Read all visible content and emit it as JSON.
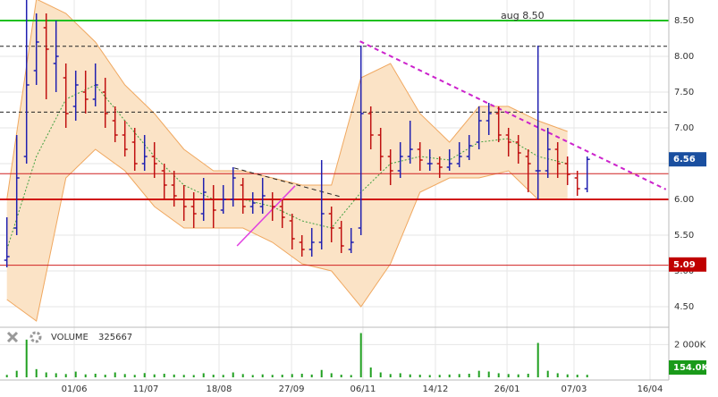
{
  "chart_data": [
    {
      "type": "ohlc",
      "xlim": [
        -0.7,
        67.3
      ],
      "ylim": [
        4.225,
        8.7875
      ],
      "xticks": [
        {
          "value": 6.85,
          "label": "01/06"
        },
        {
          "value": 14.12,
          "label": "11/07"
        },
        {
          "value": 21.57,
          "label": "18/08"
        },
        {
          "value": 28.94,
          "label": "27/09"
        },
        {
          "value": 36.2,
          "label": "06/11"
        },
        {
          "value": 43.57,
          "label": "14/12"
        },
        {
          "value": 50.85,
          "label": "26/01"
        },
        {
          "value": 57.66,
          "label": "07/03"
        },
        {
          "value": 65.39,
          "label": "16/04"
        }
      ],
      "yticks": [
        {
          "value": 4.5,
          "label": "4.50"
        },
        {
          "value": 5.0,
          "label": "5.00"
        },
        {
          "value": 5.5,
          "label": "5.50"
        },
        {
          "value": 6.0,
          "label": "6.00"
        },
        {
          "value": 6.5,
          "label": "6.50"
        },
        {
          "value": 7.0,
          "label": "7.00"
        },
        {
          "value": 7.5,
          "label": "7.50"
        },
        {
          "value": 8.0,
          "label": "8.00"
        },
        {
          "value": 8.5,
          "label": "8.50"
        }
      ],
      "grid": true,
      "up_color": "#2020b0",
      "down_color": "#c01010",
      "open": [
        5.15,
        5.6,
        6.6,
        7.8,
        8.4,
        7.9,
        7.7,
        7.3,
        7.5,
        7.4,
        7.5,
        7.1,
        6.9,
        6.8,
        6.5,
        6.6,
        6.4,
        6.2,
        6.0,
        5.9,
        5.8,
        6.0,
        5.85,
        6.0,
        6.2,
        5.9,
        5.9,
        6.0,
        5.9,
        5.7,
        5.4,
        5.3,
        5.4,
        5.8,
        5.6,
        5.3,
        5.6,
        7.2,
        6.9,
        6.6,
        6.4,
        6.6,
        6.7,
        6.5,
        6.5,
        6.45,
        6.5,
        6.6,
        6.8,
        7.1,
        7.2,
        6.9,
        6.8,
        6.6,
        6.4,
        6.4,
        6.7,
        6.5,
        6.3,
        6.15
      ],
      "high": [
        5.75,
        6.9,
        8.8,
        8.6,
        8.6,
        8.5,
        7.9,
        7.8,
        7.8,
        7.9,
        7.7,
        7.3,
        7.1,
        7.0,
        6.9,
        6.8,
        6.5,
        6.4,
        6.2,
        6.1,
        6.3,
        6.2,
        6.2,
        6.45,
        6.3,
        6.1,
        6.3,
        6.1,
        6.0,
        5.8,
        5.5,
        5.6,
        6.55,
        5.9,
        5.7,
        5.6,
        8.15,
        7.3,
        7.0,
        6.7,
        6.8,
        7.1,
        6.8,
        6.7,
        6.6,
        6.7,
        6.8,
        6.9,
        7.3,
        7.35,
        7.3,
        7.0,
        6.9,
        6.7,
        8.15,
        7.0,
        6.8,
        6.6,
        6.4,
        6.6
      ],
      "low": [
        5.05,
        5.5,
        6.5,
        7.6,
        7.4,
        7.5,
        7.0,
        7.1,
        7.2,
        7.3,
        7.0,
        6.8,
        6.6,
        6.4,
        6.4,
        6.3,
        6.0,
        5.9,
        5.7,
        5.6,
        5.7,
        5.6,
        5.8,
        5.9,
        5.8,
        5.8,
        5.8,
        5.7,
        5.6,
        5.3,
        5.2,
        5.2,
        5.3,
        5.4,
        5.25,
        5.25,
        5.5,
        6.7,
        6.4,
        6.2,
        6.3,
        6.5,
        6.4,
        6.4,
        6.3,
        6.4,
        6.45,
        6.55,
        6.7,
        6.9,
        6.8,
        6.6,
        6.5,
        6.1,
        6.0,
        6.3,
        6.3,
        6.2,
        6.05,
        6.1
      ],
      "close": [
        5.2,
        6.3,
        7.6,
        8.2,
        8.1,
        8.0,
        7.2,
        7.6,
        7.4,
        7.6,
        7.2,
        6.9,
        6.7,
        6.5,
        6.6,
        6.5,
        6.2,
        6.05,
        5.9,
        5.8,
        6.1,
        5.85,
        6.0,
        6.3,
        5.9,
        5.95,
        6.05,
        5.9,
        5.75,
        5.45,
        5.3,
        5.4,
        5.8,
        5.6,
        5.35,
        5.4,
        7.2,
        6.9,
        6.6,
        6.4,
        6.6,
        6.7,
        6.55,
        6.5,
        6.45,
        6.5,
        6.6,
        6.75,
        7.1,
        7.2,
        6.9,
        6.8,
        6.65,
        6.5,
        6.4,
        6.7,
        6.5,
        6.35,
        6.15,
        6.56
      ],
      "bands": {
        "x": [
          0,
          3,
          6,
          9,
          12,
          15,
          18,
          21,
          24,
          27,
          30,
          33,
          36,
          39,
          42,
          45,
          48,
          51,
          54,
          57
        ],
        "upper": [
          6.0,
          8.8,
          8.6,
          8.2,
          7.6,
          7.2,
          6.7,
          6.4,
          6.4,
          6.3,
          6.2,
          6.2,
          7.7,
          7.9,
          7.2,
          6.8,
          7.3,
          7.3,
          7.1,
          6.95
        ],
        "lower": [
          4.6,
          4.3,
          6.3,
          6.7,
          6.4,
          5.9,
          5.6,
          5.6,
          5.6,
          5.4,
          5.1,
          5.0,
          4.5,
          5.1,
          6.1,
          6.3,
          6.3,
          6.4,
          6.0,
          6.0
        ],
        "middle": [
          5.3,
          6.6,
          7.4,
          7.6,
          7.1,
          6.6,
          6.2,
          6.0,
          6.0,
          5.9,
          5.7,
          5.6,
          6.1,
          6.5,
          6.6,
          6.55,
          6.8,
          6.85,
          6.6,
          6.5
        ],
        "fill": "#fbe3c6",
        "edge": "#f0a860",
        "middle_color": "#40a040"
      },
      "levels": [
        {
          "value": 8.5,
          "color": "#20c020",
          "width": 2,
          "dashed": false,
          "label": "aug 8.50"
        },
        {
          "value": 8.14,
          "color": "#222222",
          "width": 1,
          "dashed": true
        },
        {
          "value": 7.22,
          "color": "#222222",
          "width": 1,
          "dashed": true
        },
        {
          "value": 6.36,
          "color": "#d02020",
          "width": 1,
          "dashed": false
        },
        {
          "value": 6.0,
          "color": "#d01010",
          "width": 2,
          "dashed": false
        },
        {
          "value": 5.08,
          "color": "#d02020",
          "width": 1,
          "dashed": false
        }
      ],
      "trendlines": [
        {
          "x": [
            35.9,
            67.0
          ],
          "y": [
            8.21,
            6.14
          ],
          "color": "#cc22cc",
          "width": 2,
          "dashed": true
        },
        {
          "x": [
            23.1,
            33.85
          ],
          "y": [
            6.44,
            6.04
          ],
          "color": "#222222",
          "width": 1,
          "dashed": true
        },
        {
          "x": [
            23.4,
            29.3
          ],
          "y": [
            5.35,
            6.19
          ],
          "color": "#e040e0",
          "width": 1.5,
          "dashed": false
        }
      ],
      "last_price": {
        "value": 6.56,
        "label": "6.56",
        "color": "#1a4fa0"
      },
      "marker": {
        "value": 5.09,
        "label": "5.09",
        "color": "#c00000"
      }
    },
    {
      "type": "volume",
      "title": "VOLUME",
      "subtitle": "325667",
      "ylim": [
        0,
        3000000
      ],
      "yticks": [
        {
          "value": 2000000,
          "label": "2 000K"
        }
      ],
      "color": "#20a020",
      "values": [
        150000,
        400000,
        2300000,
        500000,
        300000,
        250000,
        200000,
        350000,
        180000,
        220000,
        160000,
        300000,
        200000,
        150000,
        260000,
        180000,
        220000,
        170000,
        150000,
        140000,
        250000,
        160000,
        150000,
        300000,
        200000,
        140000,
        180000,
        150000,
        160000,
        200000,
        220000,
        170000,
        450000,
        250000,
        160000,
        140000,
        2700000,
        600000,
        300000,
        200000,
        250000,
        180000,
        160000,
        140000,
        150000,
        170000,
        200000,
        220000,
        400000,
        350000,
        250000,
        200000,
        180000,
        220000,
        2100000,
        400000,
        250000,
        180000,
        160000,
        154000
      ],
      "last_volume": {
        "value": 154000,
        "label": "154.0K",
        "color": "#1a9a1a"
      }
    }
  ]
}
